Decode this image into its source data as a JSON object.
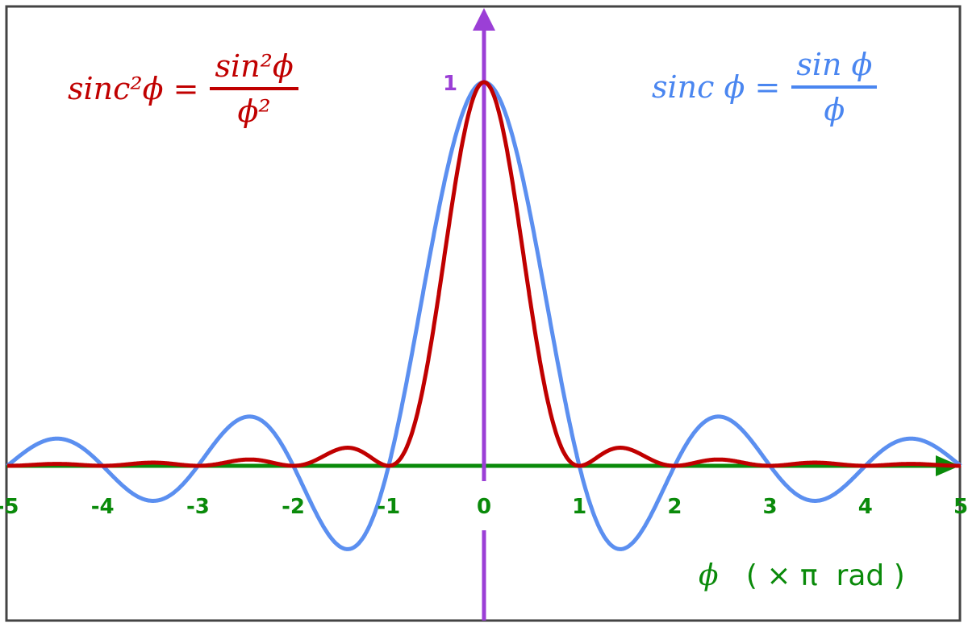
{
  "chart_data": {
    "type": "line",
    "xlim": [
      -5,
      5
    ],
    "ylim": [
      -0.4,
      1.0
    ],
    "x_ticks": [
      "-5",
      "-4",
      "-3",
      "-2",
      "-1",
      "0",
      "1",
      "2",
      "3",
      "4",
      "5"
    ],
    "y_ticks": [
      "1"
    ],
    "xlabel": {
      "symbol": "ϕ",
      "unit": "( × π  rad )"
    },
    "grid": false,
    "series": [
      {
        "name": "sinc ϕ = sin ϕ / ϕ",
        "function": "sinc",
        "color": "#5b8ff0",
        "label": {
          "lhs": "sinc ϕ =",
          "num": "sin ϕ",
          "den": "ϕ"
        }
      },
      {
        "name": "sinc²ϕ = sin²ϕ / ϕ²",
        "function": "sinc_squared",
        "color": "#c00000",
        "label": {
          "lhs": "sinc²ϕ =",
          "num": "sin²ϕ",
          "den": "ϕ²"
        }
      }
    ],
    "colors": {
      "x_axis": "#0a8a0a",
      "y_axis": "#9b3fd6",
      "frame": "#444444"
    }
  }
}
